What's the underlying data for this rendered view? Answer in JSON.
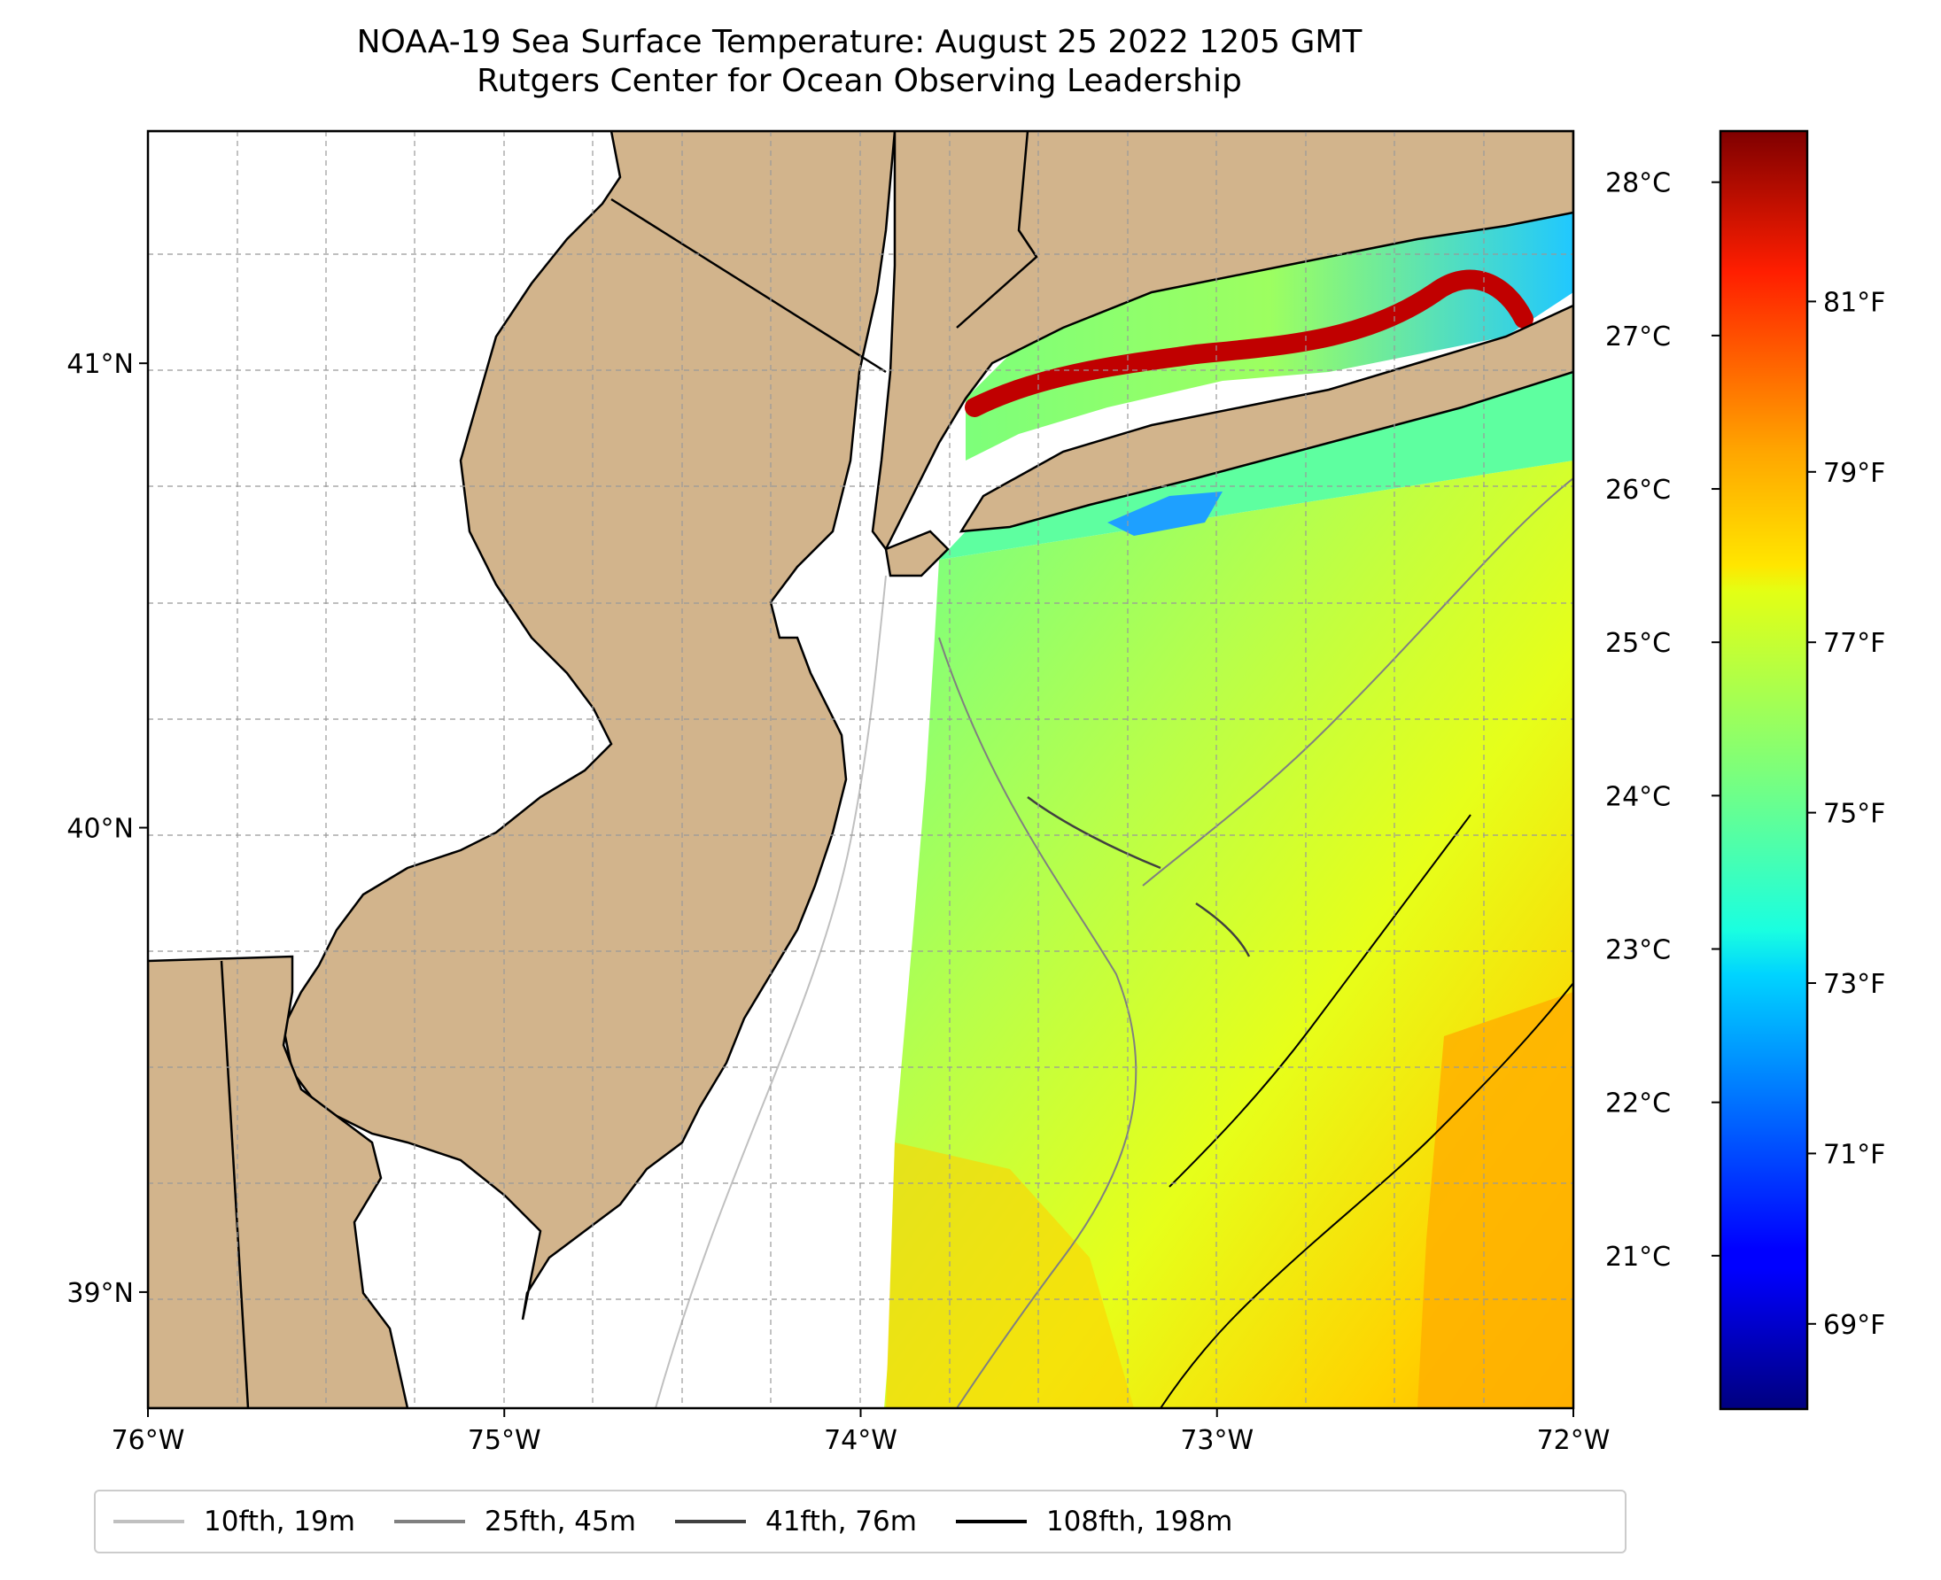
{
  "title": {
    "line1": "NOAA-19 Sea Surface Temperature: August 25 2022 1205 GMT",
    "line2": "Rutgers Center for Ocean Observing Leadership"
  },
  "map": {
    "extent": {
      "lon_min": -76,
      "lon_max": -72,
      "lat_min": 38.75,
      "lat_max": 41.5
    },
    "land_color": "#d2b48c",
    "x_ticks": [
      {
        "lon": -76,
        "label": "76°W"
      },
      {
        "lon": -75,
        "label": "75°W"
      },
      {
        "lon": -74,
        "label": "74°W"
      },
      {
        "lon": -73,
        "label": "73°W"
      },
      {
        "lon": -72,
        "label": "72°W"
      }
    ],
    "y_ticks": [
      {
        "lat": 41,
        "label": "41°N"
      },
      {
        "lat": 40,
        "label": "40°N"
      },
      {
        "lat": 39,
        "label": "39°N"
      }
    ]
  },
  "colorbar": {
    "celsius_ticks": [
      {
        "v": 21,
        "label": "21°C"
      },
      {
        "v": 22,
        "label": "22°C"
      },
      {
        "v": 23,
        "label": "23°C"
      },
      {
        "v": 24,
        "label": "24°C"
      },
      {
        "v": 25,
        "label": "25°C"
      },
      {
        "v": 26,
        "label": "26°C"
      },
      {
        "v": 27,
        "label": "27°C"
      },
      {
        "v": 28,
        "label": "28°C"
      }
    ],
    "fahrenheit_ticks": [
      {
        "v": 69,
        "label": "69°F"
      },
      {
        "v": 71,
        "label": "71°F"
      },
      {
        "v": 73,
        "label": "73°F"
      },
      {
        "v": 75,
        "label": "75°F"
      },
      {
        "v": 77,
        "label": "77°F"
      },
      {
        "v": 79,
        "label": "79°F"
      },
      {
        "v": 81,
        "label": "81°F"
      }
    ],
    "range_f": [
      68,
      83
    ]
  },
  "legend": [
    {
      "label": "10fth, 19m",
      "color": "#c0c0c0"
    },
    {
      "label": "25fth, 45m",
      "color": "#808080"
    },
    {
      "label": "41fth, 76m",
      "color": "#404040"
    },
    {
      "label": "108fth, 198m",
      "color": "#000000"
    }
  ]
}
